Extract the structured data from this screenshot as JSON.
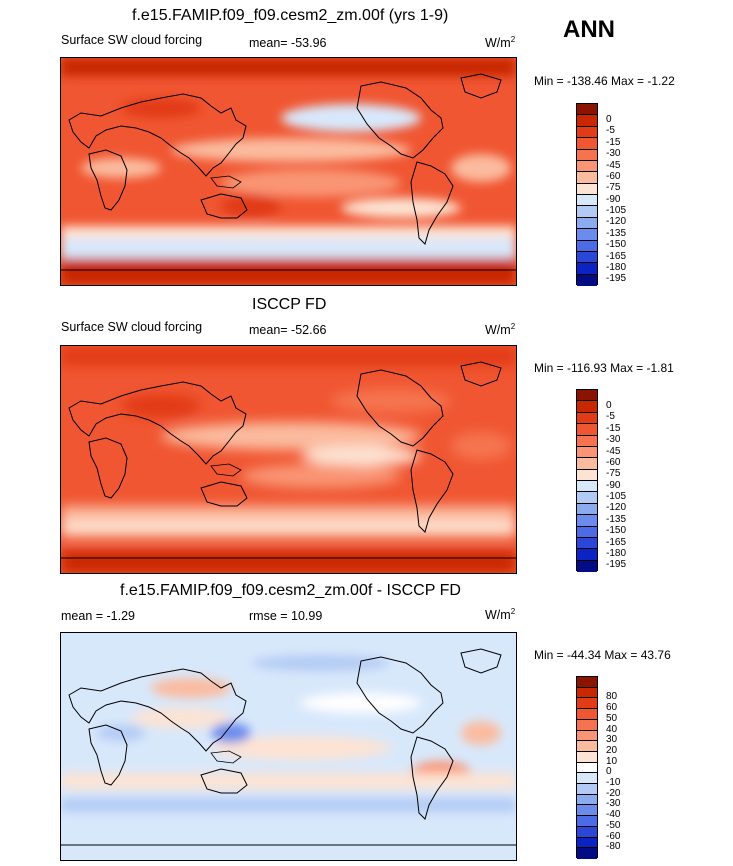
{
  "header": {
    "season": "ANN"
  },
  "chart_data": [
    {
      "type": "heatmap",
      "title": "f.e15.FAMIP.f09_f09.cesm2_zm.00f (yrs 1-9)",
      "variable": "Surface SW cloud forcing",
      "mean_text": "mean= -53.96",
      "units": "W/m",
      "units_exp": "2",
      "minmax_text": "Min = -138.46 Max =  -1.22",
      "levels": [
        "0",
        "-5",
        "-15",
        "-30",
        "-45",
        "-60",
        "-75",
        "-90",
        "-105",
        "-120",
        "-135",
        "-150",
        "-165",
        "-180",
        "-195"
      ],
      "colors": [
        "#8c1300",
        "#c82700",
        "#e23b17",
        "#f05632",
        "#f5744f",
        "#f99575",
        "#fbbb9f",
        "#fde3d3",
        "#d8e8fb",
        "#b3cbf4",
        "#8aacef",
        "#6b8cec",
        "#4c6be6",
        "#2a47d8",
        "#0b23c2",
        "#030c85"
      ]
    },
    {
      "type": "heatmap",
      "title": "ISCCP FD",
      "variable": "Surface SW cloud forcing",
      "mean_text": "mean= -52.66",
      "units": "W/m",
      "units_exp": "2",
      "minmax_text": "Min = -116.93 Max =  -1.81",
      "levels": [
        "0",
        "-5",
        "-15",
        "-30",
        "-45",
        "-60",
        "-75",
        "-90",
        "-105",
        "-120",
        "-135",
        "-150",
        "-165",
        "-180",
        "-195"
      ],
      "colors": [
        "#8c1300",
        "#c82700",
        "#e23b17",
        "#f05632",
        "#f5744f",
        "#f99575",
        "#fbbb9f",
        "#fde3d3",
        "#d8e8fb",
        "#b3cbf4",
        "#8aacef",
        "#6b8cec",
        "#4c6be6",
        "#2a47d8",
        "#0b23c2",
        "#030c85"
      ]
    },
    {
      "type": "heatmap",
      "title": "f.e15.FAMIP.f09_f09.cesm2_zm.00f - ISCCP FD",
      "variable": "",
      "mean_text": "mean =  -1.29",
      "rmse_text": "rmse =  10.99",
      "units": "W/m",
      "units_exp": "2",
      "minmax_text": "Min = -44.34 Max =  43.76",
      "levels": [
        "80",
        "60",
        "50",
        "40",
        "30",
        "20",
        "10",
        "0",
        "-10",
        "-20",
        "-30",
        "-40",
        "-50",
        "-60",
        "-80"
      ],
      "colors": [
        "#8c1300",
        "#c82700",
        "#e23b17",
        "#f05632",
        "#f5744f",
        "#f99575",
        "#fbbb9f",
        "#fde3d3",
        "#ffffff",
        "#d8e8fb",
        "#b3cbf4",
        "#8aacef",
        "#6b8cec",
        "#4c6be6",
        "#2a47d8",
        "#0b23c2",
        "#030c85"
      ]
    }
  ]
}
